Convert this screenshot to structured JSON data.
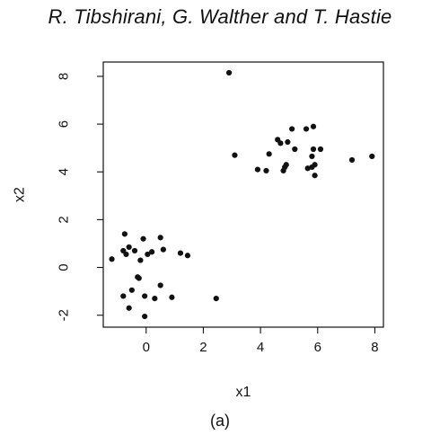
{
  "header": {
    "authors": "R. Tibshirani, G. Walther and T. Hastie"
  },
  "caption": "(a)",
  "chart_data": {
    "type": "scatter",
    "xlabel": "x1",
    "ylabel": "x2",
    "xlim": [
      -1.5,
      8.3
    ],
    "ylim": [
      -2.5,
      8.6
    ],
    "x_ticks": [
      0,
      2,
      4,
      6,
      8
    ],
    "y_ticks": [
      -2,
      0,
      2,
      4,
      6,
      8
    ],
    "grid": false,
    "points": [
      [
        2.9,
        8.15
      ],
      [
        3.1,
        4.7
      ],
      [
        3.9,
        4.1
      ],
      [
        4.2,
        4.05
      ],
      [
        4.3,
        4.75
      ],
      [
        4.6,
        5.35
      ],
      [
        4.7,
        5.2
      ],
      [
        4.8,
        4.05
      ],
      [
        4.85,
        4.2
      ],
      [
        4.9,
        4.3
      ],
      [
        4.95,
        5.25
      ],
      [
        5.1,
        5.8
      ],
      [
        5.2,
        4.95
      ],
      [
        5.6,
        5.8
      ],
      [
        5.65,
        4.15
      ],
      [
        5.8,
        4.2
      ],
      [
        5.8,
        4.65
      ],
      [
        5.85,
        4.95
      ],
      [
        5.85,
        5.9
      ],
      [
        5.9,
        4.3
      ],
      [
        5.9,
        3.85
      ],
      [
        6.1,
        4.95
      ],
      [
        7.2,
        4.5
      ],
      [
        7.9,
        4.65
      ],
      [
        -1.2,
        0.35
      ],
      [
        -0.8,
        0.7
      ],
      [
        -0.8,
        -1.2
      ],
      [
        -0.75,
        1.4
      ],
      [
        -0.7,
        0.55
      ],
      [
        -0.6,
        0.85
      ],
      [
        -0.6,
        -1.7
      ],
      [
        -0.5,
        -0.95
      ],
      [
        -0.4,
        0.7
      ],
      [
        -0.3,
        -0.4
      ],
      [
        -0.25,
        -0.45
      ],
      [
        -0.2,
        0.3
      ],
      [
        -0.1,
        1.2
      ],
      [
        -0.05,
        -1.2
      ],
      [
        -0.05,
        -2.05
      ],
      [
        0.05,
        0.55
      ],
      [
        0.2,
        0.65
      ],
      [
        0.3,
        -1.3
      ],
      [
        0.5,
        -0.75
      ],
      [
        0.5,
        1.25
      ],
      [
        0.6,
        0.75
      ],
      [
        0.9,
        -1.25
      ],
      [
        1.2,
        0.6
      ],
      [
        1.45,
        0.5
      ],
      [
        2.45,
        -1.3
      ]
    ]
  }
}
